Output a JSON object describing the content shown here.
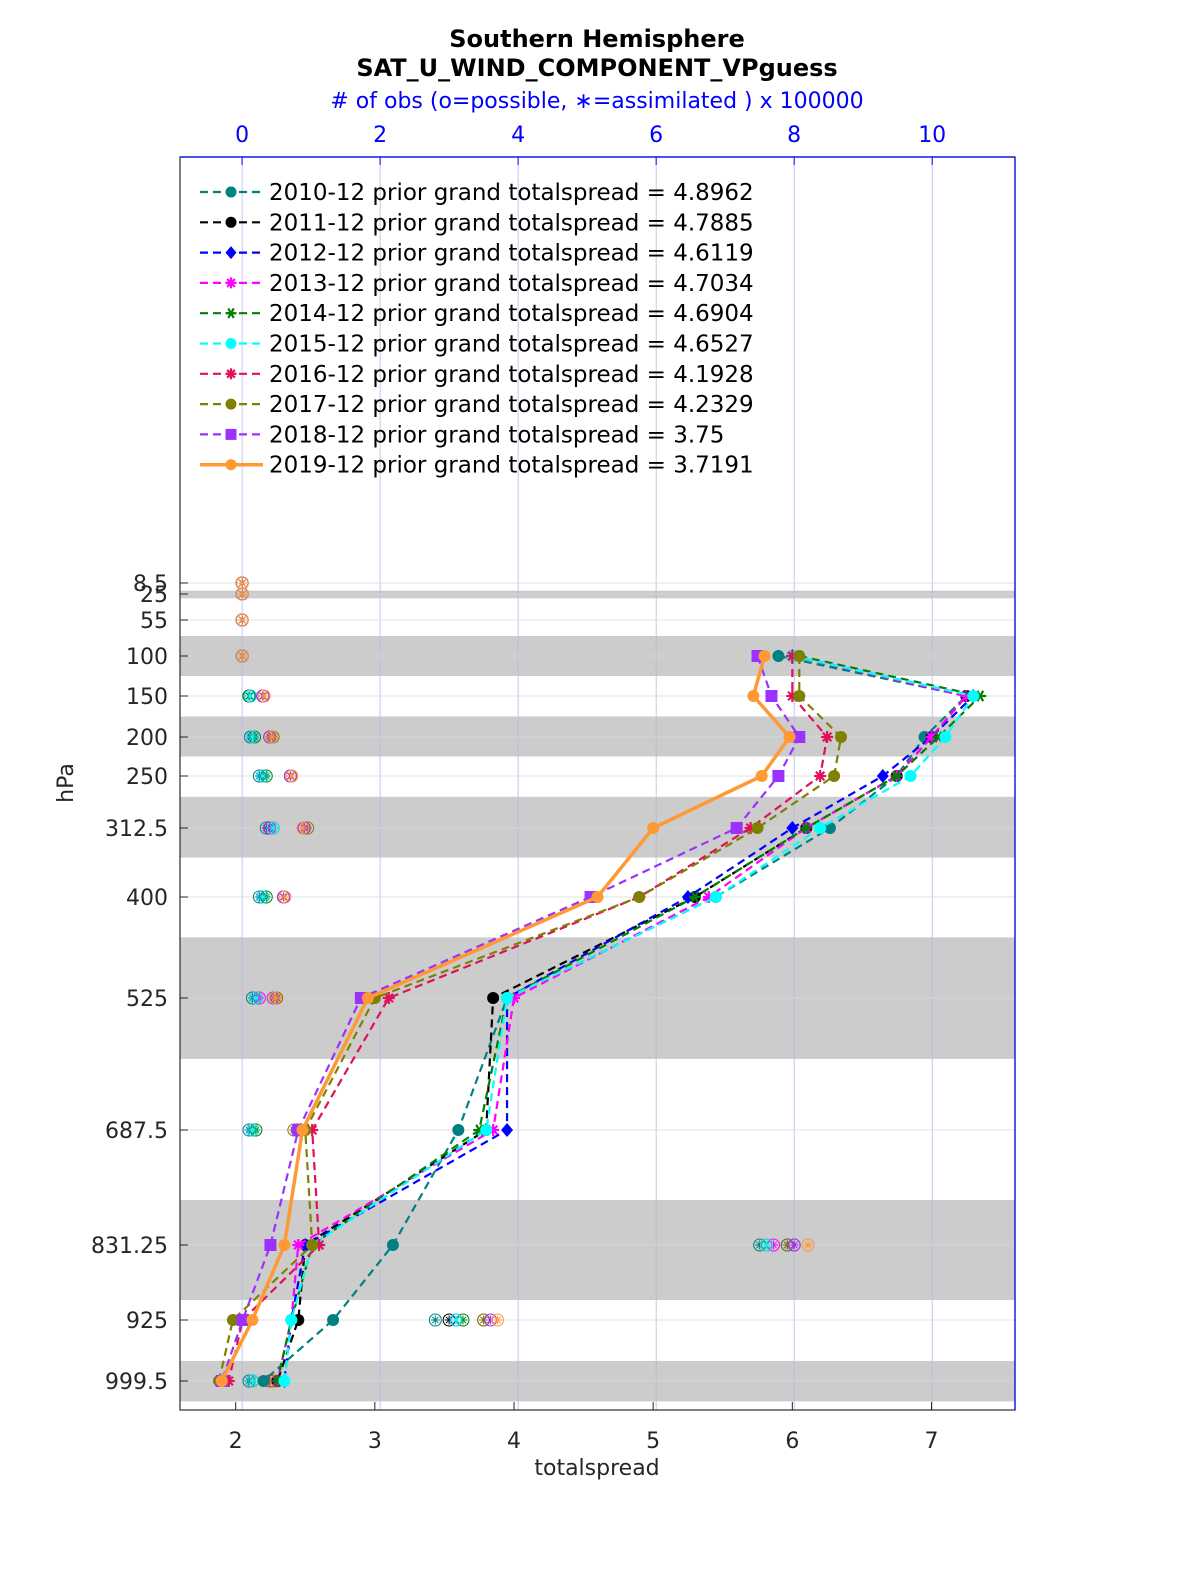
{
  "chart_data": {
    "type": "line",
    "title": "Southern Hemisphere",
    "subtitle": "SAT_U_WIND_COMPONENT_VPguess",
    "top_axis_label": "# of obs (o=possible, ∗=assimilated ) x 100000",
    "xlabel": "totalspread",
    "ylabel": "hPa",
    "xlim": [
      1.6,
      7.6
    ],
    "x_ticks": [
      2,
      3,
      4,
      5,
      6,
      7
    ],
    "top_xlim": [
      -0.9,
      11.2
    ],
    "top_ticks": [
      0,
      2,
      4,
      6,
      8,
      10
    ],
    "levels": [
      8.5,
      25,
      55,
      100,
      150,
      200,
      250,
      312.5,
      400,
      525,
      687.5,
      831.25,
      925,
      999.5
    ],
    "level_labels": [
      "8.5",
      "25",
      "55",
      "100",
      "150",
      "200",
      "250",
      "312.5",
      "400",
      "525",
      "687.5",
      "831.25",
      "925",
      "999.5"
    ],
    "shaded_layers": [
      [
        20,
        30
      ],
      [
        75,
        125
      ],
      [
        175,
        225
      ],
      [
        275,
        350
      ],
      [
        450,
        600
      ],
      [
        775,
        900
      ],
      [
        975,
        1025
      ]
    ],
    "legend_position": "top-left",
    "series": [
      {
        "name": "2010-12 prior grand totalspread = 4.8962",
        "color": "#008080",
        "dash": "8,5",
        "marker": "circle",
        "values": [
          null,
          null,
          null,
          5.9,
          7.25,
          6.95,
          6.75,
          6.27,
          5.45,
          3.95,
          3.6,
          3.13,
          2.7,
          2.2
        ],
        "obs_possible": [
          0.0,
          0.0,
          0.0,
          0.0,
          0.1,
          0.12,
          0.25,
          0.35,
          0.25,
          0.15,
          0.1,
          7.5,
          2.8,
          0.1
        ],
        "obs_assimilated": [
          0.0,
          0.0,
          0.0,
          0.0,
          0.1,
          0.12,
          0.25,
          0.35,
          0.25,
          0.15,
          0.1,
          7.5,
          2.8,
          0.1
        ]
      },
      {
        "name": "2011-12 prior grand totalspread = 4.7885",
        "color": "#000000",
        "dash": "8,5",
        "marker": "circle",
        "values": [
          null,
          null,
          null,
          6.0,
          7.25,
          7.0,
          6.75,
          6.1,
          5.3,
          3.85,
          3.8,
          2.5,
          2.45,
          2.3
        ],
        "obs_possible": [
          0.0,
          0.0,
          0.0,
          0.0,
          0.1,
          0.15,
          0.3,
          0.4,
          0.3,
          0.2,
          0.15,
          7.6,
          3.0,
          0.15
        ],
        "obs_assimilated": [
          0.0,
          0.0,
          0.0,
          0.0,
          0.1,
          0.15,
          0.3,
          0.4,
          0.3,
          0.2,
          0.15,
          7.6,
          3.0,
          0.15
        ]
      },
      {
        "name": "2012-12 prior grand totalspread = 4.6119",
        "color": "#0000ff",
        "dash": "8,5",
        "marker": "diamond",
        "values": [
          null,
          null,
          null,
          6.0,
          7.3,
          7.0,
          6.65,
          6.0,
          5.25,
          3.95,
          3.95,
          2.5,
          2.4,
          2.35
        ],
        "obs_possible": [
          0.0,
          0.0,
          0.0,
          0.0,
          0.12,
          0.15,
          0.3,
          0.45,
          0.3,
          0.2,
          0.15,
          7.9,
          3.1,
          0.15
        ],
        "obs_assimilated": [
          0.0,
          0.0,
          0.0,
          0.0,
          0.12,
          0.15,
          0.3,
          0.45,
          0.3,
          0.2,
          0.15,
          7.9,
          3.1,
          0.15
        ]
      },
      {
        "name": "2013-12 prior grand totalspread = 4.7034",
        "color": "#ff00ff",
        "dash": "8,5",
        "marker": "star",
        "values": [
          null,
          null,
          null,
          6.0,
          7.25,
          7.0,
          6.75,
          6.1,
          5.4,
          4.0,
          3.85,
          2.45,
          2.4,
          2.3
        ],
        "obs_possible": [
          0.0,
          0.0,
          0.0,
          0.0,
          0.12,
          0.15,
          0.3,
          0.4,
          0.3,
          0.25,
          0.15,
          7.7,
          3.1,
          0.15
        ],
        "obs_assimilated": [
          0.0,
          0.0,
          0.0,
          0.0,
          0.12,
          0.15,
          0.3,
          0.4,
          0.3,
          0.25,
          0.15,
          7.7,
          3.1,
          0.15
        ]
      },
      {
        "name": "2014-12 prior grand totalspread = 4.6904",
        "color": "#008000",
        "dash": "8,5",
        "marker": "hexagram",
        "values": [
          null,
          null,
          null,
          6.05,
          7.35,
          7.05,
          6.75,
          6.1,
          5.3,
          3.95,
          3.75,
          2.55,
          2.4,
          2.3
        ],
        "obs_possible": [
          0.0,
          0.0,
          0.0,
          0.0,
          0.1,
          0.18,
          0.35,
          0.45,
          0.35,
          0.2,
          0.2,
          7.6,
          3.2,
          0.15
        ],
        "obs_assimilated": [
          0.0,
          0.0,
          0.0,
          0.0,
          0.1,
          0.18,
          0.35,
          0.45,
          0.35,
          0.2,
          0.2,
          7.6,
          3.2,
          0.15
        ]
      },
      {
        "name": "2015-12 prior grand totalspread = 4.6527",
        "color": "#00ffff",
        "dash": "8,5",
        "marker": "circle",
        "values": [
          null,
          null,
          null,
          6.0,
          7.3,
          7.1,
          6.85,
          6.2,
          5.45,
          3.95,
          3.8,
          2.55,
          2.4,
          2.35
        ],
        "obs_possible": [
          0.0,
          0.0,
          0.0,
          0.0,
          0.12,
          0.15,
          0.3,
          0.45,
          0.3,
          0.2,
          0.15,
          7.6,
          3.1,
          0.15
        ],
        "obs_assimilated": [
          0.0,
          0.0,
          0.0,
          0.0,
          0.12,
          0.15,
          0.3,
          0.45,
          0.3,
          0.2,
          0.15,
          7.6,
          3.1,
          0.15
        ]
      },
      {
        "name": "2016-12 prior grand totalspread = 4.1928",
        "color": "#e0105a",
        "dash": "8,5",
        "marker": "star",
        "values": [
          null,
          null,
          null,
          6.0,
          6.0,
          6.25,
          6.2,
          5.7,
          4.9,
          3.1,
          2.55,
          2.6,
          2.05,
          1.95
        ],
        "obs_possible": [
          0.0,
          0.0,
          0.0,
          0.0,
          0.3,
          0.4,
          0.7,
          0.9,
          0.6,
          0.5,
          0.8,
          8.0,
          3.5,
          0.4
        ],
        "obs_assimilated": [
          0.0,
          0.0,
          0.0,
          0.0,
          0.3,
          0.4,
          0.7,
          0.9,
          0.6,
          0.5,
          0.8,
          8.0,
          3.5,
          0.4
        ]
      },
      {
        "name": "2017-12 prior grand totalspread = 4.2329",
        "color": "#808000",
        "dash": "8,5",
        "marker": "circle",
        "values": [
          null,
          null,
          null,
          6.05,
          6.05,
          6.35,
          6.3,
          5.75,
          4.9,
          3.0,
          2.5,
          2.55,
          1.98,
          1.88
        ],
        "obs_possible": [
          0.0,
          0.0,
          0.0,
          0.0,
          0.3,
          0.45,
          0.7,
          0.95,
          0.6,
          0.5,
          0.75,
          7.9,
          3.5,
          0.45
        ],
        "obs_assimilated": [
          0.0,
          0.0,
          0.0,
          0.0,
          0.3,
          0.45,
          0.7,
          0.95,
          0.6,
          0.5,
          0.75,
          7.9,
          3.5,
          0.45
        ]
      },
      {
        "name": "2018-12 prior grand totalspread = 3.75",
        "color": "#9b30ff",
        "dash": "8,5",
        "marker": "square",
        "values": [
          null,
          null,
          null,
          5.75,
          5.85,
          6.05,
          5.9,
          5.6,
          4.55,
          2.9,
          2.45,
          2.25,
          2.05,
          1.9
        ],
        "obs_possible": [
          0.0,
          0.0,
          0.0,
          0.0,
          0.3,
          0.4,
          0.7,
          0.9,
          0.6,
          0.45,
          0.8,
          8.0,
          3.6,
          0.5
        ],
        "obs_assimilated": [
          0.0,
          0.0,
          0.0,
          0.0,
          0.3,
          0.4,
          0.7,
          0.9,
          0.6,
          0.45,
          0.8,
          8.0,
          3.6,
          0.5
        ]
      },
      {
        "name": "2019-12 prior grand totalspread = 3.7191",
        "color": "#ff9933",
        "dash": "",
        "marker": "circle",
        "width": 3.5,
        "values": [
          null,
          null,
          null,
          5.8,
          5.72,
          5.98,
          5.78,
          5.0,
          4.6,
          2.95,
          2.48,
          2.35,
          2.12,
          1.9
        ],
        "obs_possible": [
          0.0,
          0.0,
          0.0,
          0.0,
          0.32,
          0.43,
          0.72,
          0.88,
          0.62,
          0.48,
          0.85,
          8.2,
          3.7,
          0.5
        ],
        "obs_assimilated": [
          0.0,
          0.0,
          0.0,
          0.0,
          0.32,
          0.43,
          0.72,
          0.88,
          0.62,
          0.48,
          0.85,
          8.2,
          3.7,
          0.5
        ]
      }
    ]
  }
}
